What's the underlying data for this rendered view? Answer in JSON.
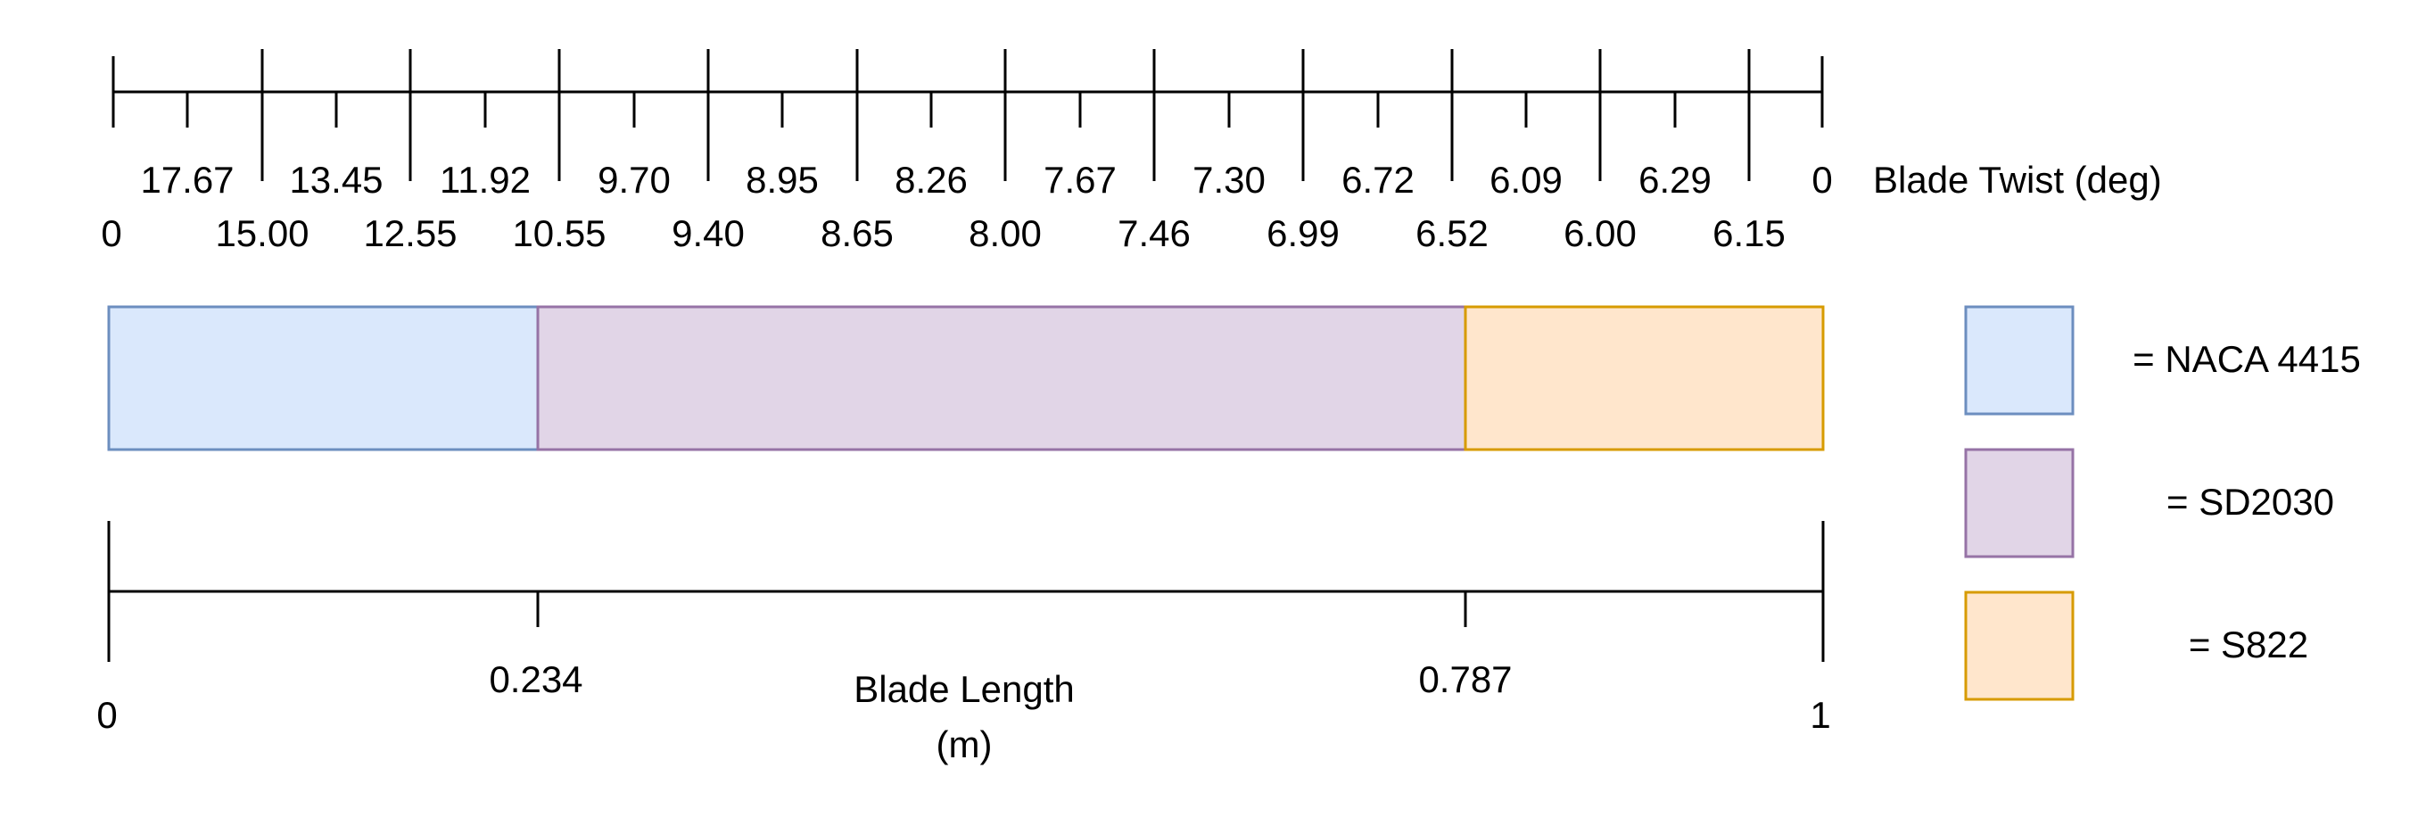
{
  "twist_scale": {
    "label": "Blade Twist (deg)",
    "upper_labels": [
      "17.67",
      "13.45",
      "11.92",
      "9.70",
      "8.95",
      "8.26",
      "7.67",
      "7.30",
      "6.72",
      "6.09",
      "6.29",
      "0"
    ],
    "lower_labels": [
      "0",
      "15.00",
      "12.55",
      "10.55",
      "9.40",
      "8.65",
      "8.00",
      "7.46",
      "6.99",
      "6.52",
      "6.00",
      "6.15"
    ]
  },
  "blade": {
    "segments": [
      {
        "airfoil": "NACA 4415",
        "start": 0,
        "end": 0.234,
        "fill": "#dae8fc",
        "stroke": "#6c8ebf"
      },
      {
        "airfoil": "SD2030",
        "start": 0.234,
        "end": 0.787,
        "fill": "#e1d5e7",
        "stroke": "#9673a6"
      },
      {
        "airfoil": "S822",
        "start": 0.787,
        "end": 1,
        "fill": "#ffe6cc",
        "stroke": "#d79b00"
      }
    ]
  },
  "length_scale": {
    "label_line1": "Blade Length",
    "label_line2": "(m)",
    "tick_labels": [
      "0",
      "0.234",
      "0.787",
      "1"
    ]
  },
  "legend": {
    "items": [
      {
        "text": "= NACA 4415",
        "fill": "#dae8fc",
        "stroke": "#6c8ebf"
      },
      {
        "text": "= SD2030",
        "fill": "#e1d5e7",
        "stroke": "#9673a6"
      },
      {
        "text": "= S822",
        "fill": "#ffe6cc",
        "stroke": "#d79b00"
      }
    ]
  }
}
